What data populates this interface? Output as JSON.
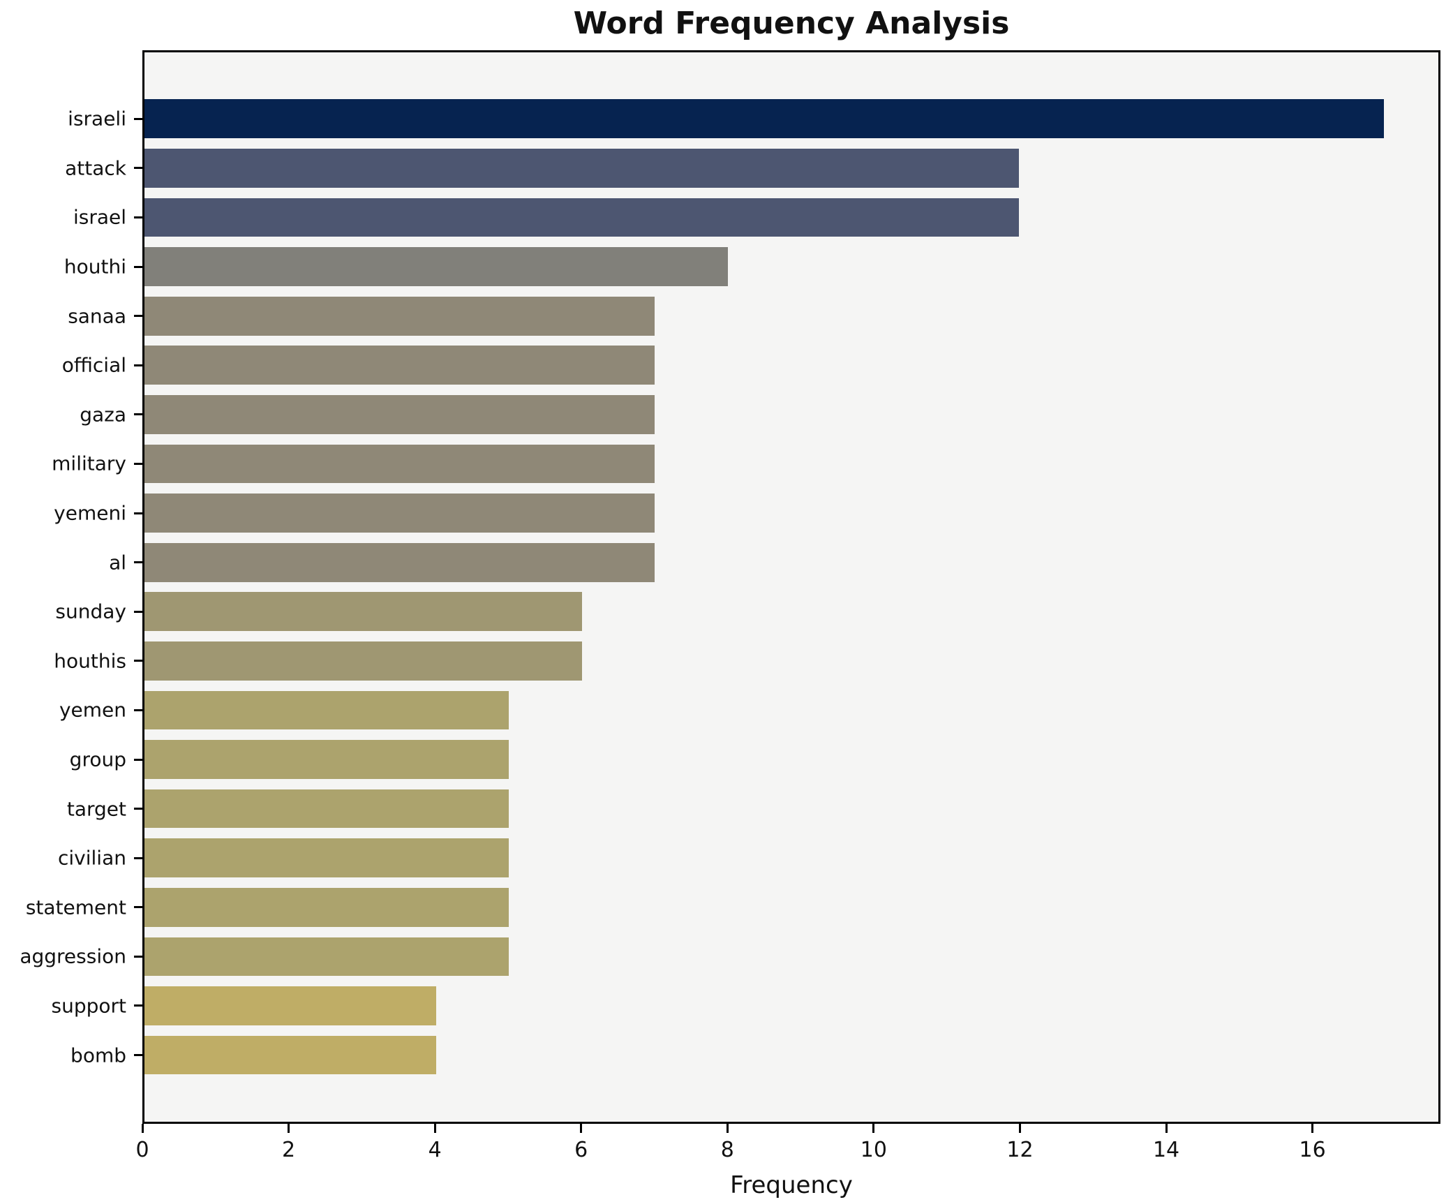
{
  "title": "Word Frequency Analysis",
  "chart_data": {
    "type": "bar",
    "orientation": "horizontal",
    "title": "Word Frequency Analysis",
    "xlabel": "Frequency",
    "ylabel": "",
    "categories": [
      "israeli",
      "attack",
      "israel",
      "houthi",
      "sanaa",
      "official",
      "gaza",
      "military",
      "yemeni",
      "al",
      "sunday",
      "houthis",
      "yemen",
      "group",
      "target",
      "civilian",
      "statement",
      "aggression",
      "support",
      "bomb"
    ],
    "values": [
      17,
      12,
      12,
      8,
      7,
      7,
      7,
      7,
      7,
      7,
      6,
      6,
      5,
      5,
      5,
      5,
      5,
      5,
      4,
      4
    ],
    "bar_colors": [
      "#062350",
      "#4d5671",
      "#4d5671",
      "#81807a",
      "#8f8877",
      "#8f8877",
      "#8f8877",
      "#8f8877",
      "#8f8877",
      "#8f8877",
      "#9f9772",
      "#9f9772",
      "#aca36d",
      "#aca36d",
      "#aca36d",
      "#aca36d",
      "#aca36d",
      "#aca36d",
      "#bfad66",
      "#bfad66"
    ],
    "xlim": [
      0,
      17.75
    ],
    "xticks": [
      0,
      2,
      4,
      6,
      8,
      10,
      12,
      14,
      16
    ],
    "grid": false,
    "legend": "none",
    "plot_background": "#f5f5f4",
    "figure_background": "#ffffff",
    "spine_color": "#000000",
    "bar_height_fraction": 0.8
  }
}
